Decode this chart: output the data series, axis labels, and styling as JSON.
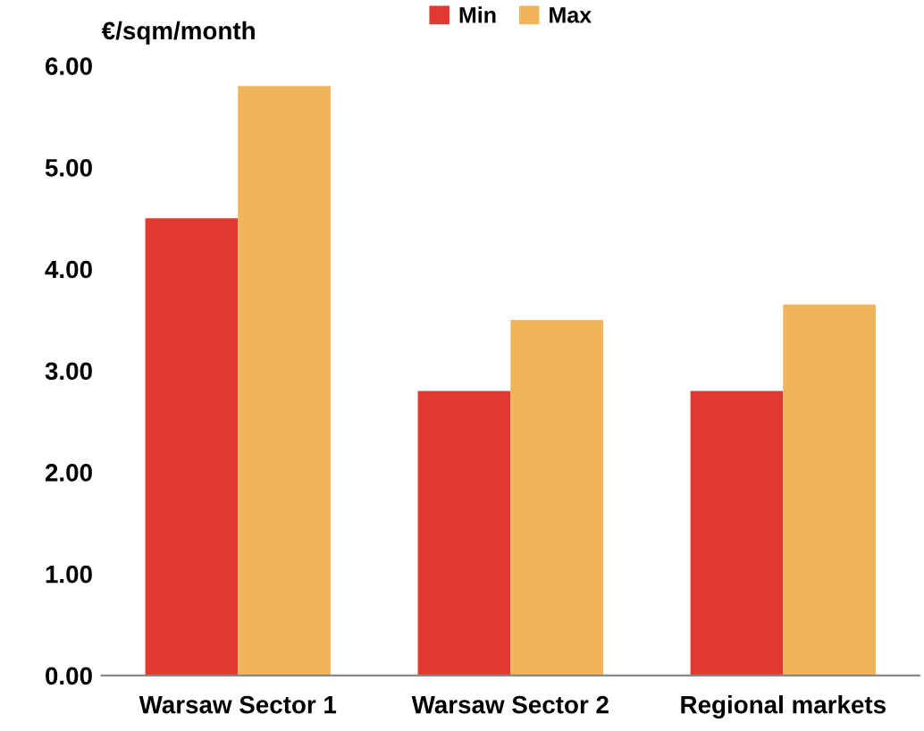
{
  "chart_data": {
    "type": "bar",
    "ylabel": "€/sqm/month",
    "categories": [
      "Warsaw Sector 1",
      "Warsaw Sector 2",
      "Regional markets"
    ],
    "series": [
      {
        "name": "Min",
        "color": "#e03a30",
        "values": [
          4.5,
          2.8,
          2.8
        ]
      },
      {
        "name": "Max",
        "color": "#f0b55a",
        "values": [
          5.8,
          3.5,
          3.65
        ]
      }
    ],
    "ylim": [
      0,
      6
    ],
    "yticks": [
      {
        "value": 0,
        "label": "0.00"
      },
      {
        "value": 1,
        "label": "1.00"
      },
      {
        "value": 2,
        "label": "2.00"
      },
      {
        "value": 3,
        "label": "3.00"
      },
      {
        "value": 4,
        "label": "4.00"
      },
      {
        "value": 5,
        "label": "5.00"
      },
      {
        "value": 6,
        "label": "6.00"
      }
    ],
    "grid": false,
    "legend": "top"
  }
}
